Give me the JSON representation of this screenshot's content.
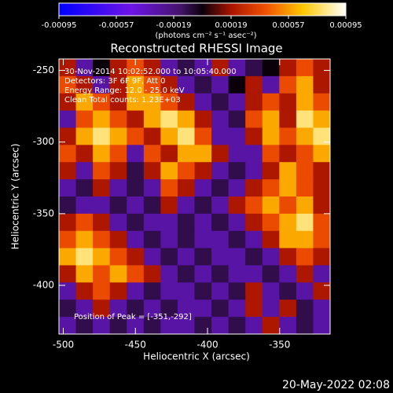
{
  "chart_data": {
    "type": "heatmap",
    "title": "Reconstructed RHESSI Image",
    "xlabel": "Heliocentric X (arcsec)",
    "ylabel": "Heliocentric Y (arcsec)",
    "annotations": [
      "30-Nov-2014 10:02:52.000 to 10:05:40.000",
      "Detectors: 3F 6F 9F, Att 0",
      "Energy Range: 12.0 - 25.0 keV",
      "Clean     Total counts: 1.23E+03"
    ],
    "peak_label": "Position of Peak = [-351,-292]",
    "timestamp": "20-May-2022 02:08",
    "colorbar": {
      "label": "(photons cm⁻² s⁻¹ asec⁻²)",
      "lim": [
        -0.00095,
        0.00095
      ],
      "ticks": [
        -0.00095,
        -0.00057,
        -0.00019,
        0.00019,
        0.00057,
        0.00095
      ]
    },
    "xlim": [
      -503,
      -315
    ],
    "ylim": [
      -434,
      -242
    ],
    "xticks": [
      -500,
      -450,
      -400,
      -350
    ],
    "yticks": [
      -250,
      -300,
      -350,
      -400
    ],
    "values": [
      [
        0.0002,
        -0.0003,
        0,
        0.0002,
        0.0004,
        0.0002,
        -0.0003,
        -0.0001,
        -0.0003,
        0.0002,
        -0.0003,
        -0.0001,
        0,
        0.0002,
        0.0004,
        0.0002
      ],
      [
        0.0004,
        0.0002,
        -0.0003,
        0.0002,
        0.0006,
        0.0004,
        0.0002,
        -0.0003,
        -0.0001,
        -0.0003,
        0,
        0.0002,
        -0.0003,
        0.0004,
        0.0006,
        0.0002
      ],
      [
        0.0002,
        0.0006,
        0.0004,
        0.0002,
        0.0006,
        0.0006,
        0.0004,
        0.0002,
        -0.0003,
        -0.0001,
        -0.0003,
        0.0002,
        0.0004,
        0.0002,
        0.0006,
        0.0004
      ],
      [
        -0.0003,
        0.0004,
        0.0006,
        0.0004,
        0.0002,
        0.0006,
        0.0008,
        0.0006,
        0.0002,
        -0.0003,
        -0.0001,
        0.0004,
        0.0006,
        0.0002,
        0.0008,
        0.0006
      ],
      [
        0.0002,
        0.0006,
        0.0008,
        0.0006,
        0.0004,
        0.0002,
        0.0006,
        0.0008,
        0.0004,
        -0.0003,
        -0.0003,
        0.0002,
        0.0006,
        0.0004,
        0.0006,
        0.0008
      ],
      [
        0.0004,
        0.0002,
        0.0006,
        0.0004,
        -0.0003,
        0.0004,
        0.0002,
        0.0006,
        0.0006,
        0.0002,
        -0.0003,
        -0.0003,
        0.0004,
        0.0002,
        0.0004,
        0.0006
      ],
      [
        0.0002,
        -0.0003,
        0.0004,
        0.0002,
        -0.0001,
        0.0002,
        0.0006,
        0.0004,
        0.0002,
        -0.0003,
        -0.0001,
        -0.0003,
        0.0002,
        0.0006,
        0.0004,
        0.0002
      ],
      [
        -0.0003,
        -0.0001,
        0.0002,
        -0.0003,
        -0.0001,
        -0.0003,
        0.0004,
        0.0002,
        -0.0003,
        -0.0001,
        -0.0003,
        0.0002,
        0.0004,
        0.0006,
        0.0004,
        0.0002
      ],
      [
        -0.0001,
        -0.0003,
        -0.0003,
        -0.0001,
        -0.0003,
        -0.0001,
        0.0002,
        -0.0003,
        -0.0001,
        -0.0003,
        0.0002,
        0.0004,
        0.0006,
        0.0004,
        0.0006,
        0.0002
      ],
      [
        0.0002,
        0.0004,
        0.0002,
        -0.0003,
        -0.0001,
        -0.0003,
        -0.0003,
        -0.0001,
        -0.0003,
        -0.0001,
        -0.0003,
        0.0002,
        0.0004,
        0.0006,
        0.0008,
        0.0004
      ],
      [
        0.0004,
        0.0006,
        0.0004,
        0.0002,
        -0.0003,
        -0.0001,
        -0.0003,
        -0.0001,
        -0.0003,
        -0.0003,
        -0.0001,
        -0.0003,
        0.0002,
        0.0006,
        0.0006,
        0.0004
      ],
      [
        0.0006,
        0.0008,
        0.0006,
        0.0004,
        0.0002,
        -0.0003,
        -0.0001,
        -0.0003,
        -0.0001,
        -0.0003,
        -0.0003,
        -0.0001,
        -0.0003,
        0.0002,
        0.0004,
        0.0002
      ],
      [
        0.0002,
        0.0006,
        0.0004,
        0.0006,
        0.0004,
        0.0002,
        -0.0003,
        -0.0001,
        -0.0003,
        -0.0001,
        -0.0003,
        -0.0003,
        -0.0001,
        -0.0003,
        0.0002,
        -0.0003
      ],
      [
        -0.0003,
        0.0002,
        0.0004,
        0.0002,
        -0.0003,
        -0.0001,
        -0.0003,
        -0.0003,
        -0.0001,
        -0.0003,
        -0.0001,
        0.0002,
        -0.0003,
        -0.0001,
        -0.0003,
        0.0002
      ],
      [
        -0.0001,
        -0.0003,
        0.0002,
        -0.0003,
        -0.0001,
        -0.0003,
        -0.0001,
        -0.0003,
        -0.0003,
        -0.0001,
        -0.0003,
        0.0002,
        -0.0003,
        0.0002,
        -0.0001,
        -0.0003
      ],
      [
        -0.0003,
        -0.0001,
        -0.0003,
        -0.0001,
        -0.0003,
        -0.0001,
        -0.0003,
        -0.0003,
        -0.0001,
        -0.0003,
        -0.0001,
        -0.0003,
        0.0002,
        -0.0003,
        -0.0001,
        -0.0003
      ]
    ]
  }
}
